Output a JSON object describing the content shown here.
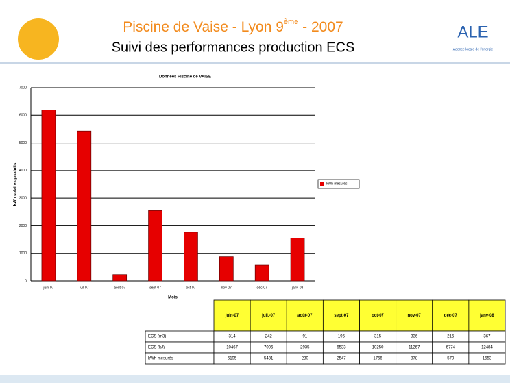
{
  "header": {
    "title_main": "Piscine de Vaise  - Lyon 9",
    "title_sup": "ème",
    "title_end": " - 2007",
    "subtitle": "Suivi des performances production ECS",
    "logo": "ALE",
    "logo_caption": "Agence locale de l'énergie"
  },
  "chart_data": {
    "type": "bar",
    "title": "Données Piscine de VAISE",
    "x_label": "Mois",
    "y_label": "kWh solaires produits",
    "categories": [
      "juin-07",
      "juil-07",
      "août-07",
      "sept-07",
      "oct-07",
      "nov-07",
      "déc-07",
      "janv-08"
    ],
    "series": [
      {
        "name": "kWh mesurés",
        "color": "#e60000",
        "values": [
          6195,
          5431,
          230,
          2547,
          1766,
          878,
          570,
          1553
        ]
      }
    ],
    "ylim": [
      0,
      7000
    ],
    "yticks": [
      0,
      1000,
      2000,
      3000,
      4000,
      5000,
      6000,
      7000
    ],
    "grid": true,
    "legend": "right"
  },
  "table": {
    "columns": [
      "juin-07",
      "juil.-07",
      "août-07",
      "sept-07",
      "oct-07",
      "nov-07",
      "déc-07",
      "janv-08"
    ],
    "rows": [
      [
        "ECS (m3)",
        "314",
        "242",
        "91",
        "196",
        "315",
        "336",
        "215",
        "367"
      ],
      [
        "ECS (kJ)",
        "10467",
        "7006",
        "2935",
        "6533",
        "10250",
        "11267",
        "6774",
        "12484"
      ],
      [
        "kWh mesurés",
        "6195",
        "5431",
        "230",
        "2547",
        "1766",
        "878",
        "570",
        "1553"
      ]
    ]
  }
}
